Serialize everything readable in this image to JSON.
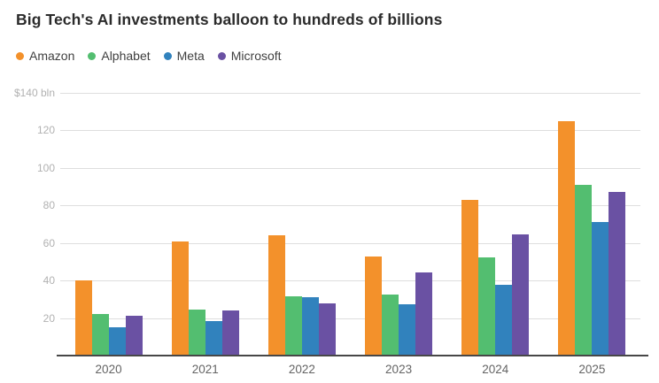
{
  "chart_data": {
    "type": "bar",
    "title": "Big Tech's AI investments balloon to hundreds of billions",
    "categories": [
      "2020",
      "2021",
      "2022",
      "2023",
      "2024",
      "2025"
    ],
    "series": [
      {
        "name": "Amazon",
        "color": "#F3912B",
        "values": [
          40,
          61,
          64,
          53,
          83,
          125
        ]
      },
      {
        "name": "Alphabet",
        "color": "#53BE70",
        "values": [
          22,
          24.5,
          31.5,
          32.5,
          52.5,
          91
        ]
      },
      {
        "name": "Meta",
        "color": "#3182BD",
        "values": [
          15,
          18.5,
          31,
          27.5,
          37.5,
          71
        ]
      },
      {
        "name": "Microsoft",
        "color": "#6A51A3",
        "values": [
          21,
          24,
          28,
          44.5,
          64.5,
          87
        ]
      }
    ],
    "unit_label": "$ bln",
    "yticks": [
      {
        "value": 140,
        "label": "$140 bln"
      },
      {
        "value": 120,
        "label": "120"
      },
      {
        "value": 100,
        "label": "100"
      },
      {
        "value": 80,
        "label": "80"
      },
      {
        "value": 60,
        "label": "60"
      },
      {
        "value": 40,
        "label": "40"
      },
      {
        "value": 20,
        "label": "20"
      }
    ],
    "ylim": [
      0,
      140
    ],
    "grid": true,
    "legend_position": "top-left",
    "colors": {
      "grid": "#dedede",
      "axis_line": "#474747",
      "ytick_text": "#b1b1b1",
      "xtick_text": "#646464",
      "title_text": "#2b2b2b"
    }
  }
}
